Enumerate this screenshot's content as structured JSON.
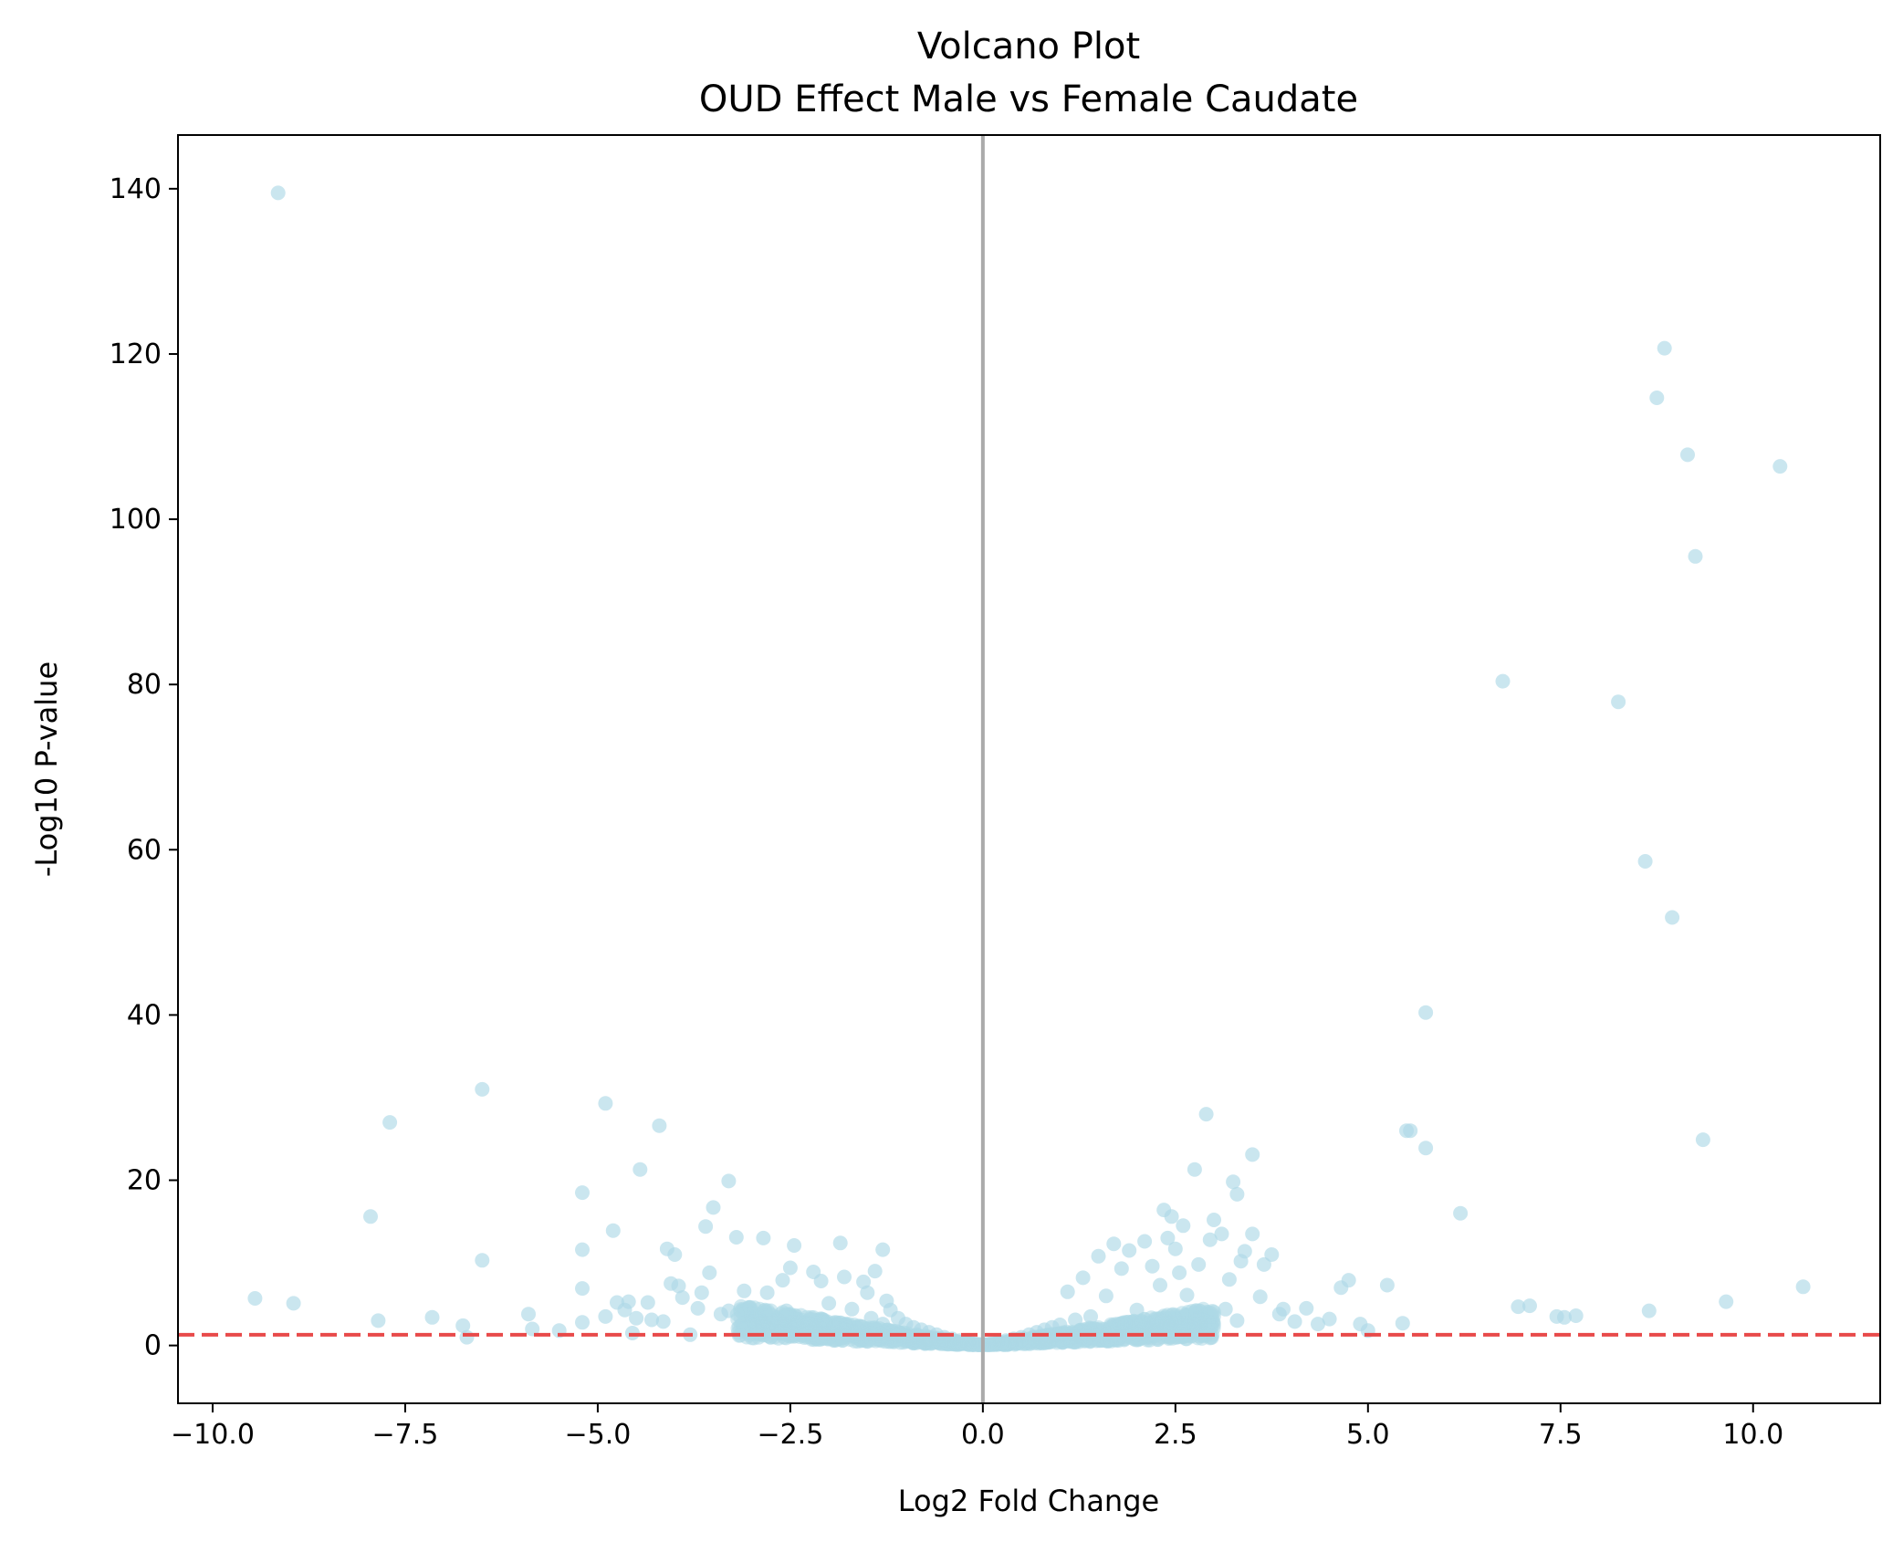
{
  "chart_data": {
    "type": "scatter",
    "title": "Volcano Plot",
    "subtitle": "OUD Effect Male vs Female Caudate",
    "xlabel": "Log2 Fold Change",
    "ylabel": "-Log10 P-value",
    "xlim": [
      -10.45,
      11.65
    ],
    "ylim": [
      -7,
      146.5
    ],
    "xticks": [
      -10.0,
      -7.5,
      -5.0,
      -2.5,
      0.0,
      2.5,
      5.0,
      7.5,
      10.0
    ],
    "xtick_labels": [
      "−10.0",
      "−7.5",
      "−5.0",
      "−2.5",
      "0.0",
      "2.5",
      "5.0",
      "7.5",
      "10.0"
    ],
    "yticks": [
      0,
      20,
      40,
      60,
      80,
      100,
      120,
      140
    ],
    "ytick_labels": [
      "0",
      "20",
      "40",
      "60",
      "80",
      "100",
      "120",
      "140"
    ],
    "grid": false,
    "point_color": "#add8e6",
    "vline_color": "#aaaaaa",
    "hline_color": "#e84a4a",
    "reference_lines": [
      {
        "orientation": "vertical",
        "x": 0,
        "style": "solid",
        "color": "#aaaaaa"
      },
      {
        "orientation": "horizontal",
        "y": 1.3,
        "style": "dashed",
        "color": "#e84a4a"
      }
    ],
    "series": [
      {
        "x": [
          -9.15,
          -9.45,
          -8.95,
          -7.85,
          -7.95,
          -7.7,
          -7.15,
          -6.7,
          -6.75,
          -6.5,
          -6.5,
          -5.9,
          -5.85,
          -5.5,
          -5.2,
          -5.2,
          -5.2,
          -5.2,
          -4.9,
          -4.9,
          -4.8,
          -4.75,
          -4.65,
          -4.6,
          -4.55,
          -4.5,
          -4.45,
          -4.35,
          -4.3,
          -4.2,
          -4.15,
          -4.1,
          -4.05,
          -4.0,
          -3.95,
          -3.9,
          -3.8,
          -3.7,
          -3.65,
          -3.6,
          -3.55,
          -3.5,
          -3.4,
          -3.3,
          -3.3,
          -3.2,
          -3.1,
          -2.95,
          -2.85,
          -2.8,
          -2.7,
          -2.6,
          -2.55,
          -2.5,
          -2.5,
          -2.45,
          -2.3,
          -2.2,
          -2.15,
          -2.1,
          -2.0,
          -1.9,
          -1.85,
          -1.8,
          -1.7,
          -1.6,
          -1.55,
          -1.5,
          -1.45,
          -1.4,
          -1.3,
          -1.3,
          -1.25,
          -1.2,
          -1.1,
          -1.0,
          -0.9,
          -0.8,
          -0.7,
          -0.6,
          -0.5,
          -0.4,
          -0.3,
          -0.2,
          -0.1
        ],
        "y": [
          139.5,
          5.7,
          5.1,
          3.0,
          15.6,
          27.0,
          3.4,
          1.0,
          2.4,
          31.0,
          10.3,
          3.8,
          2.0,
          1.8,
          18.5,
          11.6,
          6.9,
          2.8,
          29.3,
          3.5,
          13.9,
          5.2,
          4.3,
          5.3,
          1.5,
          3.3,
          21.3,
          5.2,
          3.1,
          26.6,
          2.9,
          11.7,
          7.5,
          11.0,
          7.2,
          5.8,
          1.3,
          4.5,
          6.4,
          14.4,
          8.8,
          16.7,
          3.8,
          19.9,
          4.2,
          13.1,
          6.6,
          2.1,
          13.0,
          6.4,
          1.5,
          7.9,
          4.2,
          9.4,
          3.6,
          12.1,
          2.8,
          8.9,
          3.0,
          7.8,
          5.1,
          2.2,
          12.4,
          8.3,
          4.4,
          1.9,
          7.7,
          6.4,
          3.3,
          9.0,
          11.6,
          2.6,
          5.4,
          4.3,
          3.3,
          2.6,
          2.2,
          1.9,
          1.6,
          1.3,
          1.0,
          0.8,
          0.6,
          0.4,
          0.2
        ]
      },
      {
        "x": [
          0.1,
          0.2,
          0.3,
          0.4,
          0.5,
          0.6,
          0.7,
          0.8,
          0.9,
          1.0,
          1.1,
          1.2,
          1.3,
          1.4,
          1.5,
          1.6,
          1.7,
          1.8,
          1.9,
          2.0,
          2.1,
          2.2,
          2.3,
          2.35,
          2.4,
          2.45,
          2.5,
          2.55,
          2.6,
          2.65,
          2.75,
          2.8,
          2.9,
          2.95,
          3.0,
          3.1,
          3.15,
          3.2,
          3.25,
          3.3,
          3.3,
          3.35,
          3.4,
          3.5,
          3.5,
          3.6,
          3.65,
          3.75,
          3.85,
          3.9,
          4.05,
          4.2,
          4.35,
          4.5,
          4.65,
          4.75,
          4.9,
          5.0,
          5.25,
          5.45,
          5.5,
          5.55,
          5.75,
          5.75,
          6.2,
          6.75,
          6.95,
          7.1,
          7.45,
          7.55,
          7.7,
          8.25,
          8.6,
          8.65,
          8.75,
          8.85,
          8.95,
          9.15,
          9.25,
          9.35,
          9.65,
          10.35,
          10.65
        ],
        "y": [
          0.2,
          0.4,
          0.6,
          0.8,
          1.0,
          1.3,
          1.6,
          1.9,
          2.2,
          2.5,
          6.5,
          3.1,
          8.2,
          3.5,
          10.8,
          6.0,
          12.3,
          9.3,
          11.5,
          4.3,
          12.6,
          9.6,
          7.3,
          16.4,
          13.0,
          15.6,
          11.7,
          8.8,
          14.5,
          6.1,
          21.3,
          9.8,
          28.0,
          12.8,
          15.2,
          13.5,
          4.4,
          8.0,
          19.8,
          18.3,
          3.0,
          10.2,
          11.4,
          23.1,
          13.5,
          5.9,
          9.8,
          11.0,
          3.8,
          4.4,
          2.9,
          4.5,
          2.6,
          3.2,
          7.0,
          7.9,
          2.6,
          1.8,
          7.3,
          2.7,
          26.0,
          26.0,
          40.3,
          23.9,
          16.0,
          80.4,
          4.7,
          4.8,
          3.5,
          3.4,
          3.6,
          77.9,
          58.6,
          4.2,
          114.7,
          120.7,
          51.8,
          107.8,
          95.5,
          24.9,
          5.3,
          106.4,
          7.1
        ]
      }
    ]
  }
}
